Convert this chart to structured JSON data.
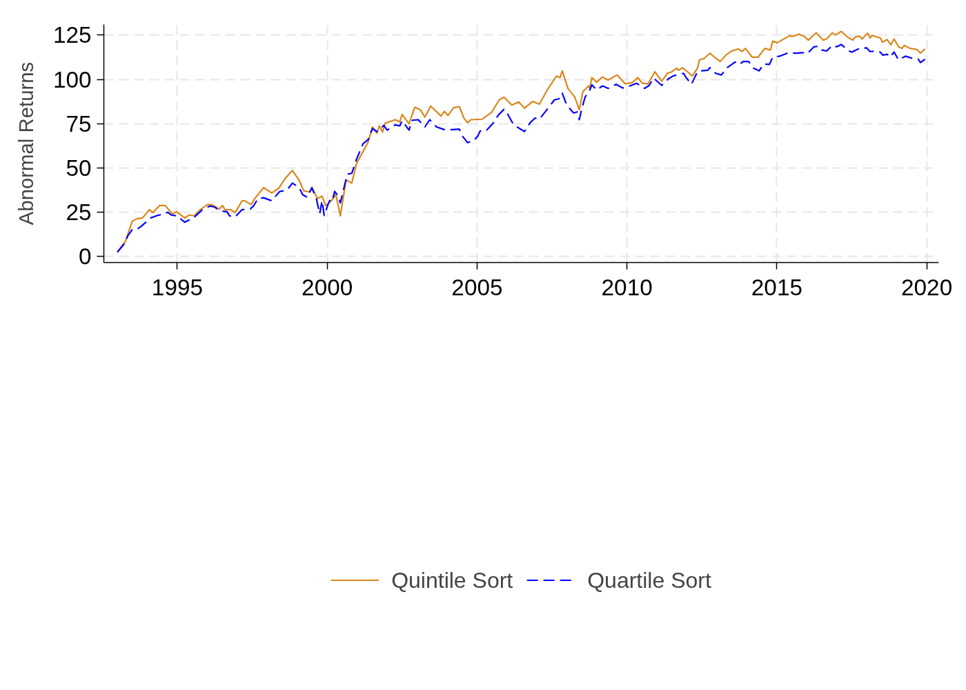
{
  "chart_data": {
    "type": "line",
    "ylabel": "Abnormal Returns",
    "xlim": [
      1992.55,
      2020.4
    ],
    "ylim": [
      -3.5,
      131
    ],
    "xticks": [
      1995,
      2000,
      2005,
      2010,
      2015,
      2020
    ],
    "yticks": [
      0,
      25,
      50,
      75,
      100,
      125
    ],
    "grid": true,
    "legend": "bottom",
    "series": [
      {
        "name": "Quintile Sort",
        "color": "#d9861c",
        "line_style": "solid",
        "x": [
          1993.0,
          1993.27,
          1993.5,
          1993.65,
          1993.84,
          1994.07,
          1994.18,
          1994.41,
          1994.6,
          1994.83,
          1994.98,
          1995.25,
          1995.4,
          1995.56,
          1995.79,
          1996.01,
          1996.17,
          1996.4,
          1996.51,
          1996.59,
          1996.78,
          1996.93,
          1997.16,
          1997.24,
          1997.47,
          1997.58,
          1997.88,
          1998.15,
          1998.38,
          1998.61,
          1998.84,
          1999.07,
          1999.22,
          1999.41,
          1999.49,
          1999.68,
          1999.83,
          1999.95,
          2000.14,
          2000.29,
          2000.44,
          2000.63,
          2000.82,
          2000.98,
          2001.36,
          2001.51,
          2001.66,
          2001.74,
          2001.85,
          2001.93,
          2002.27,
          2002.42,
          2002.5,
          2002.73,
          2002.92,
          2003.11,
          2003.26,
          2003.45,
          2003.8,
          2003.91,
          2004.03,
          2004.22,
          2004.41,
          2004.56,
          2004.68,
          2004.79,
          2005.17,
          2005.48,
          2005.74,
          2005.9,
          2006.16,
          2006.39,
          2006.58,
          2006.85,
          2007.08,
          2007.34,
          2007.65,
          2007.77,
          2007.84,
          2008.03,
          2008.26,
          2008.41,
          2008.53,
          2008.72,
          2008.76,
          2008.83,
          2008.99,
          2009.18,
          2009.37,
          2009.67,
          2009.94,
          2010.17,
          2010.36,
          2010.51,
          2010.7,
          2010.93,
          2011.16,
          2011.35,
          2011.5,
          2011.66,
          2011.73,
          2011.85,
          2012.04,
          2012.18,
          2012.35,
          2012.42,
          2012.58,
          2012.77,
          2012.92,
          2013.11,
          2013.3,
          2013.49,
          2013.72,
          2013.83,
          2013.95,
          2014.18,
          2014.37,
          2014.6,
          2014.79,
          2014.86,
          2015.02,
          2015.17,
          2015.44,
          2015.51,
          2015.74,
          2015.89,
          2016.05,
          2016.31,
          2016.54,
          2016.66,
          2016.85,
          2016.96,
          2017.15,
          2017.38,
          2017.53,
          2017.61,
          2017.76,
          2017.84,
          2018.03,
          2018.11,
          2018.18,
          2018.45,
          2018.53,
          2018.68,
          2018.8,
          2018.91,
          2019.06,
          2019.18,
          2019.25,
          2019.44,
          2019.67,
          2019.79,
          2019.94
        ],
        "values": [
          2.6,
          8.5,
          19.9,
          21.2,
          21.7,
          26.4,
          24.7,
          28.7,
          28.7,
          24.0,
          25.2,
          21.7,
          23.4,
          22.9,
          26.7,
          29.3,
          29.1,
          26.7,
          28.7,
          26.4,
          26.4,
          24.7,
          31.4,
          31.4,
          29.3,
          32.6,
          38.8,
          35.8,
          38.4,
          44.3,
          48.5,
          42.8,
          37.0,
          36.4,
          39.0,
          32.6,
          34.0,
          28.7,
          31.4,
          34.9,
          22.9,
          43.2,
          41.4,
          52.5,
          64.3,
          73.1,
          69.6,
          73.7,
          70.2,
          75.2,
          77.2,
          76.0,
          80.2,
          74.9,
          84.3,
          82.8,
          78.7,
          84.9,
          79.3,
          81.9,
          79.6,
          84.0,
          84.6,
          78.1,
          75.5,
          77.2,
          77.5,
          81.3,
          88.4,
          89.9,
          85.5,
          87.2,
          83.7,
          87.5,
          86.0,
          94.0,
          101.9,
          101.0,
          104.8,
          94.9,
          89.9,
          82.8,
          93.1,
          96.3,
          95.1,
          101.0,
          98.4,
          101.3,
          99.6,
          102.5,
          97.5,
          98.1,
          101.0,
          97.8,
          97.5,
          104.3,
          99.0,
          103.4,
          104.3,
          106.3,
          105.1,
          106.6,
          104.0,
          101.9,
          106.3,
          111.0,
          111.9,
          114.8,
          112.5,
          110.1,
          113.7,
          116.0,
          117.2,
          115.7,
          117.5,
          112.5,
          112.5,
          117.5,
          116.6,
          121.6,
          120.7,
          122.2,
          124.8,
          124.2,
          125.5,
          124.5,
          122.2,
          126.3,
          122.2,
          122.8,
          126.3,
          125.1,
          127.1,
          123.6,
          122.2,
          123.9,
          124.5,
          122.8,
          126.1,
          123.4,
          124.8,
          123.4,
          121.0,
          122.5,
          119.5,
          122.8,
          118.4,
          117.5,
          119.2,
          117.5,
          116.9,
          114.8,
          117.2
        ]
      },
      {
        "name": "Quartile Sort",
        "color": "#0000ff",
        "line_style": "dashed",
        "x": [
          1993.0,
          1993.27,
          1993.34,
          1993.5,
          1993.65,
          1993.8,
          1994.11,
          1994.34,
          1994.57,
          1994.68,
          1994.79,
          1994.98,
          1995.25,
          1995.56,
          1995.86,
          1996.09,
          1996.24,
          1996.4,
          1996.51,
          1996.66,
          1996.74,
          1996.93,
          1997.16,
          1997.43,
          1997.54,
          1997.69,
          1997.88,
          1998.15,
          1998.42,
          1998.65,
          1998.84,
          1999.07,
          1999.18,
          1999.33,
          1999.49,
          1999.64,
          1999.75,
          1999.83,
          1999.9,
          2000.02,
          2000.1,
          2000.17,
          2000.25,
          2000.36,
          2000.44,
          2000.59,
          2000.67,
          2000.82,
          2000.98,
          2001.2,
          2001.36,
          2001.51,
          2001.66,
          2001.89,
          2002.0,
          2002.27,
          2002.42,
          2002.5,
          2002.73,
          2002.84,
          2003.04,
          2003.26,
          2003.42,
          2003.65,
          2003.91,
          2004.18,
          2004.41,
          2004.49,
          2004.68,
          2004.87,
          2005.02,
          2005.1,
          2005.29,
          2005.55,
          2005.7,
          2005.9,
          2006.01,
          2006.2,
          2006.39,
          2006.58,
          2006.77,
          2006.93,
          2007.08,
          2007.34,
          2007.58,
          2007.73,
          2007.84,
          2007.99,
          2008.22,
          2008.34,
          2008.41,
          2008.49,
          2008.6,
          2008.76,
          2008.83,
          2008.99,
          2009.18,
          2009.37,
          2009.64,
          2009.86,
          2010.05,
          2010.32,
          2010.59,
          2010.74,
          2010.89,
          2011.16,
          2011.39,
          2011.54,
          2011.66,
          2011.89,
          2011.96,
          2012.15,
          2012.35,
          2012.46,
          2012.69,
          2012.77,
          2012.96,
          2013.15,
          2013.34,
          2013.61,
          2013.76,
          2013.87,
          2014.06,
          2014.22,
          2014.41,
          2014.56,
          2014.75,
          2014.86,
          2015.09,
          2015.4,
          2015.63,
          2015.86,
          2016.01,
          2016.24,
          2016.39,
          2016.5,
          2016.66,
          2016.85,
          2017.0,
          2017.15,
          2017.38,
          2017.5,
          2017.76,
          2017.99,
          2018.11,
          2018.3,
          2018.45,
          2018.53,
          2018.68,
          2018.76,
          2018.91,
          2019.06,
          2019.29,
          2019.52,
          2019.71,
          2019.79,
          2019.94
        ],
        "values": [
          2.3,
          7.9,
          11.4,
          15.2,
          15.2,
          17.0,
          21.7,
          23.1,
          24.0,
          24.9,
          23.4,
          22.9,
          19.3,
          22.0,
          26.7,
          28.4,
          27.9,
          25.8,
          25.5,
          25.2,
          22.9,
          22.3,
          26.4,
          26.7,
          28.4,
          32.6,
          33.1,
          31.4,
          36.7,
          37.3,
          41.4,
          38.7,
          34.9,
          33.4,
          38.7,
          32.6,
          24.0,
          31.4,
          23.1,
          29.0,
          32.0,
          31.4,
          36.7,
          34.3,
          30.2,
          40.8,
          46.4,
          46.9,
          54.9,
          63.7,
          65.8,
          72.2,
          70.5,
          74.0,
          71.3,
          74.3,
          73.7,
          76.6,
          71.3,
          76.9,
          77.2,
          73.1,
          77.2,
          73.1,
          71.6,
          71.6,
          71.9,
          68.4,
          64.3,
          65.2,
          67.8,
          70.8,
          70.8,
          75.5,
          79.6,
          83.1,
          80.7,
          74.9,
          72.5,
          70.5,
          75.5,
          78.1,
          77.5,
          83.1,
          88.4,
          89.0,
          92.2,
          85.5,
          81.0,
          81.6,
          77.2,
          83.1,
          89.9,
          94.0,
          96.9,
          94.0,
          96.3,
          94.9,
          97.2,
          95.1,
          96.0,
          97.8,
          94.9,
          96.6,
          100.7,
          96.6,
          100.4,
          101.9,
          102.5,
          103.4,
          101.3,
          97.2,
          104.3,
          104.8,
          105.1,
          106.6,
          103.4,
          102.5,
          106.6,
          109.8,
          108.4,
          110.1,
          110.1,
          106.3,
          104.8,
          108.7,
          108.4,
          112.5,
          113.1,
          115.1,
          114.8,
          115.1,
          114.5,
          118.4,
          118.7,
          116.6,
          116.0,
          119.2,
          118.4,
          119.7,
          116.3,
          115.4,
          117.5,
          117.8,
          115.7,
          116.0,
          115.4,
          113.7,
          114.2,
          112.5,
          115.4,
          111.0,
          113.1,
          111.9,
          111.6,
          109.5,
          111.4
        ]
      }
    ]
  }
}
